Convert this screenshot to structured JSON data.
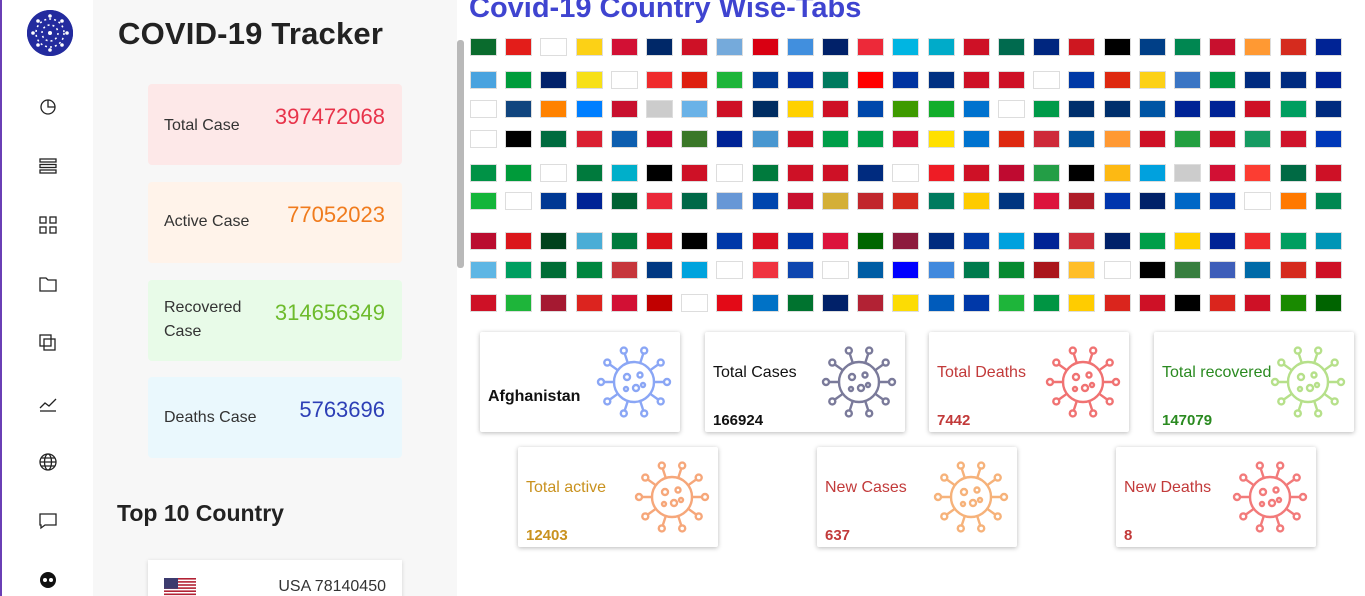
{
  "sidebar": {
    "icons": [
      "virus-logo",
      "pie-chart-icon",
      "list-icon",
      "grid-icon",
      "folder-icon",
      "copy-icon",
      "trend-icon",
      "globe-icon",
      "chat-icon",
      "circle-icon"
    ]
  },
  "panel": {
    "title": "COVID-19 Tracker",
    "stats": [
      {
        "label": "Total Case",
        "value": "397472068",
        "bg": "#fde8e8",
        "color": "#e8334a"
      },
      {
        "label": "Active Case",
        "value": "77052023",
        "bg": "#fff3ea",
        "color": "#f07b1d"
      },
      {
        "label": "Recovered Case",
        "value": "314656349",
        "bg": "#e8fbe8",
        "color": "#6dbb2c"
      },
      {
        "label": "Deaths Case",
        "value": "5763696",
        "bg": "#eaf8fd",
        "color": "#2d3fb6"
      }
    ],
    "top10_title": "Top 10 Country",
    "top10": [
      {
        "text": "USA 78140450"
      }
    ]
  },
  "main": {
    "title": "Covid-19 Country Wise-Tabs",
    "cards": [
      {
        "label": "Afghanistan",
        "value": "",
        "label_color": "#111",
        "value_color": "#111",
        "virus_color": "#8aa6f5",
        "bold": true
      },
      {
        "label": "Total Cases",
        "value": "166924",
        "label_color": "#111",
        "value_color": "#111",
        "virus_color": "#7a7a9a",
        "bold": false
      },
      {
        "label": "Total Deaths",
        "value": "7442",
        "label_color": "#c23a3a",
        "value_color": "#c23a3a",
        "virus_color": "#f07272",
        "bold": false
      },
      {
        "label": "Total recovered",
        "value": "147079",
        "label_color": "#2a8a20",
        "value_color": "#2a8a20",
        "virus_color": "#b6e08a",
        "bold": false
      },
      {
        "label": "Total active",
        "value": "12403",
        "label_color": "#c9921f",
        "value_color": "#c9921f",
        "virus_color": "#f6a77a",
        "bold": false
      },
      {
        "label": "New Cases",
        "value": "637",
        "label_color": "#c23a3a",
        "value_color": "#c23a3a",
        "virus_color": "#f6b27a",
        "bold": false
      },
      {
        "label": "New Deaths",
        "value": "8",
        "label_color": "#c23a3a",
        "value_color": "#c23a3a",
        "virus_color": "#f27a7a",
        "bold": false
      }
    ],
    "flag_rows": [
      [
        "#0a6b2d",
        "#e31d1a",
        "#ffffff",
        "#fcd116",
        "#d21034",
        "#002868",
        "#ce1126",
        "#75aadb",
        "#d90012",
        "#418fde",
        "#012169",
        "#ed2939",
        "#00b5e2",
        "#00abc9",
        "#ce1126",
        "#006a4e",
        "#00267f",
        "#ce1720",
        "#000000",
        "#003f87",
        "#008751",
        "#c8102e",
        "#ff9933",
        "#d52b1e",
        "#002395"
      ],
      [
        "#4aa3df",
        "#009c3b",
        "#012169",
        "#f7e017",
        "#ffffff",
        "#ef2b2d",
        "#de2010",
        "#1eb53a",
        "#003893",
        "#032ea1",
        "#007a5e",
        "#ff0000",
        "#0033a0",
        "#003082",
        "#ce1126",
        "#ce1126",
        "#ffffff",
        "#0039a6",
        "#de2910",
        "#fcd116",
        "#3a75c4",
        "#009543",
        "#002b7f",
        "#002b7f",
        "#002395"
      ],
      [
        "#ffffff",
        "#11457e",
        "#ff8200",
        "#007fff",
        "#c8102e",
        "#cccccc",
        "#6ab2e7",
        "#ce1126",
        "#002d62",
        "#ffd100",
        "#ce1126",
        "#0047ab",
        "#3e9a00",
        "#12ad2b",
        "#0072ce",
        "#ffffff",
        "#009a49",
        "#002f6c",
        "#002f6c",
        "#0055a4",
        "#002395",
        "#002395",
        "#ce1126",
        "#009e60",
        "#002b7f"
      ],
      [
        "#ffffff",
        "#000000",
        "#006b3f",
        "#da2032",
        "#0d5eaf",
        "#d00c33",
        "#3a7728",
        "#002395",
        "#4997d0",
        "#ce1126",
        "#009e49",
        "#009e49",
        "#d21034",
        "#ffe000",
        "#0073cf",
        "#de2910",
        "#ce2939",
        "#02529c",
        "#ff9933",
        "#ce1126",
        "#239f40",
        "#ce1126",
        "#169b62",
        "#cf142b",
        "#0038b8"
      ],
      [
        "#009246",
        "#009b3a",
        "#ffffff",
        "#007a3d",
        "#00afca",
        "#000000",
        "#ce1126",
        "#ffffff",
        "#007a3d",
        "#ce1126",
        "#ce1126",
        "#002b7f",
        "#ffffff",
        "#ee1c25",
        "#ce1126",
        "#bf0a30",
        "#239e46",
        "#000000",
        "#fdb913",
        "#00a1de",
        "#cccccc",
        "#d21034",
        "#fc3d32",
        "#006a44",
        "#ce1126"
      ],
      [
        "#14b53a",
        "#ffffff",
        "#003893",
        "#002395",
        "#006233",
        "#ea2839",
        "#006847",
        "#6797d6",
        "#0046ae",
        "#c8102e",
        "#d4af37",
        "#c1272d",
        "#d52b1e",
        "#007a5e",
        "#fecb00",
        "#003580",
        "#dc143c",
        "#ae1c28",
        "#0035ad",
        "#012169",
        "#0067c6",
        "#0038a8",
        "#ffffff",
        "#ff7900",
        "#008751"
      ],
      [
        "#ba0c2f",
        "#db161b",
        "#01411c",
        "#4aadd6",
        "#007a3d",
        "#da121a",
        "#000000",
        "#0038a8",
        "#d91023",
        "#0038a8",
        "#dc143c",
        "#006600",
        "#8d1b3d",
        "#002b7f",
        "#0039a6",
        "#00a1de",
        "#002395",
        "#cd2e3a",
        "#012169",
        "#009e49",
        "#ffd100",
        "#002395",
        "#ef2b2d",
        "#009e60",
        "#0095b6"
      ],
      [
        "#5eb6e4",
        "#009e60",
        "#006c35",
        "#00853f",
        "#c6363c",
        "#003882",
        "#00a3dd",
        "#ffffff",
        "#ef3340",
        "#0f47af",
        "#ffffff",
        "#005da4",
        "#0000ff",
        "#4189dd",
        "#007a4d",
        "#078930",
        "#aa151b",
        "#ffbe29",
        "#ffffff",
        "#000000",
        "#377e3f",
        "#3e5eb9",
        "#006aa7",
        "#d52b1e",
        "#ce1126"
      ],
      [
        "#ce1126",
        "#1eb53a",
        "#a51931",
        "#dc241f",
        "#d21034",
        "#c10000",
        "#ffffff",
        "#e30a17",
        "#0072c6",
        "#00732f",
        "#012169",
        "#b22234",
        "#fcdc04",
        "#005bbb",
        "#0038a8",
        "#1eb53a",
        "#009543",
        "#ffcc00",
        "#da251d",
        "#ce1126",
        "#000000",
        "#da251d",
        "#ce1126",
        "#198a00",
        "#006400"
      ]
    ]
  }
}
